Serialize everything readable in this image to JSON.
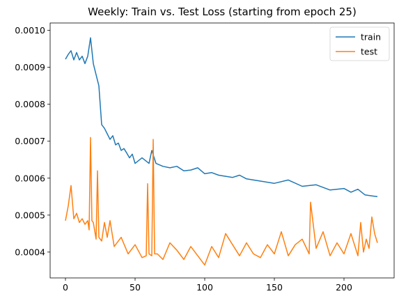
{
  "chart_data": {
    "type": "line",
    "title": "Weekly: Train vs. Test Loss (starting from epoch 25)",
    "xlabel": "",
    "ylabel": "",
    "xlim": [
      -11,
      236
    ],
    "ylim": [
      0.00033,
      0.00102
    ],
    "x_ticks": [
      0,
      50,
      100,
      150,
      200
    ],
    "x_tick_labels": [
      "0",
      "50",
      "100",
      "150",
      "200"
    ],
    "y_ticks": [
      0.0004,
      0.0005,
      0.0006,
      0.0007,
      0.0008,
      0.0009,
      0.001
    ],
    "y_tick_labels": [
      "0.0004",
      "0.0005",
      "0.0006",
      "0.0007",
      "0.0008",
      "0.0009",
      "0.0010"
    ],
    "grid": false,
    "legend_position": "top-right",
    "series": [
      {
        "name": "train",
        "color": "#1f77b4",
        "x": [
          0,
          2,
          4,
          6,
          8,
          10,
          12,
          14,
          16,
          18,
          20,
          22,
          24,
          26,
          28,
          30,
          32,
          34,
          36,
          38,
          40,
          42,
          44,
          46,
          48,
          50,
          55,
          60,
          62,
          65,
          70,
          75,
          80,
          85,
          90,
          95,
          100,
          105,
          110,
          115,
          120,
          125,
          130,
          140,
          150,
          160,
          170,
          180,
          190,
          200,
          205,
          210,
          215,
          220,
          224
        ],
        "values": [
          0.000922,
          0.000935,
          0.000945,
          0.00092,
          0.00094,
          0.00092,
          0.00093,
          0.00091,
          0.00093,
          0.00098,
          0.00091,
          0.00088,
          0.00085,
          0.000745,
          0.000735,
          0.00072,
          0.000705,
          0.000715,
          0.00069,
          0.000695,
          0.000675,
          0.00068,
          0.000668,
          0.000655,
          0.000665,
          0.00064,
          0.000655,
          0.00064,
          0.000675,
          0.00064,
          0.000632,
          0.000628,
          0.000632,
          0.00062,
          0.000622,
          0.000628,
          0.000612,
          0.000615,
          0.000608,
          0.000605,
          0.000602,
          0.000608,
          0.000598,
          0.000592,
          0.000586,
          0.000595,
          0.000578,
          0.000582,
          0.000568,
          0.000572,
          0.000562,
          0.00057,
          0.000555,
          0.000552,
          0.00055
        ]
      },
      {
        "name": "test",
        "color": "#ff7f0e",
        "x": [
          0,
          2,
          4,
          6,
          8,
          10,
          12,
          14,
          16,
          17,
          18,
          19,
          20,
          22,
          23,
          24,
          26,
          28,
          30,
          32,
          35,
          40,
          45,
          50,
          55,
          58,
          59,
          60,
          62,
          63,
          64,
          66,
          70,
          75,
          80,
          85,
          90,
          95,
          100,
          105,
          110,
          115,
          120,
          125,
          130,
          135,
          140,
          145,
          150,
          155,
          160,
          165,
          170,
          175,
          176,
          180,
          185,
          190,
          195,
          200,
          205,
          210,
          212,
          214,
          216,
          218,
          220,
          222,
          224
        ],
        "values": [
          0.000485,
          0.000525,
          0.00058,
          0.00049,
          0.000505,
          0.00048,
          0.00049,
          0.000475,
          0.000485,
          0.00046,
          0.00071,
          0.000485,
          0.00048,
          0.000435,
          0.00062,
          0.00044,
          0.00043,
          0.00048,
          0.00044,
          0.000485,
          0.000415,
          0.00044,
          0.000395,
          0.00042,
          0.000385,
          0.00039,
          0.000585,
          0.000395,
          0.00039,
          0.000705,
          0.000395,
          0.000395,
          0.00038,
          0.000425,
          0.000405,
          0.00038,
          0.000415,
          0.00039,
          0.000365,
          0.000415,
          0.000385,
          0.00045,
          0.00042,
          0.00039,
          0.000425,
          0.000395,
          0.000385,
          0.00042,
          0.000395,
          0.000455,
          0.00039,
          0.00042,
          0.000435,
          0.000395,
          0.000535,
          0.00041,
          0.000455,
          0.00039,
          0.000425,
          0.000395,
          0.00045,
          0.00039,
          0.00048,
          0.0004,
          0.000435,
          0.00041,
          0.000495,
          0.00045,
          0.000425
        ]
      }
    ]
  }
}
